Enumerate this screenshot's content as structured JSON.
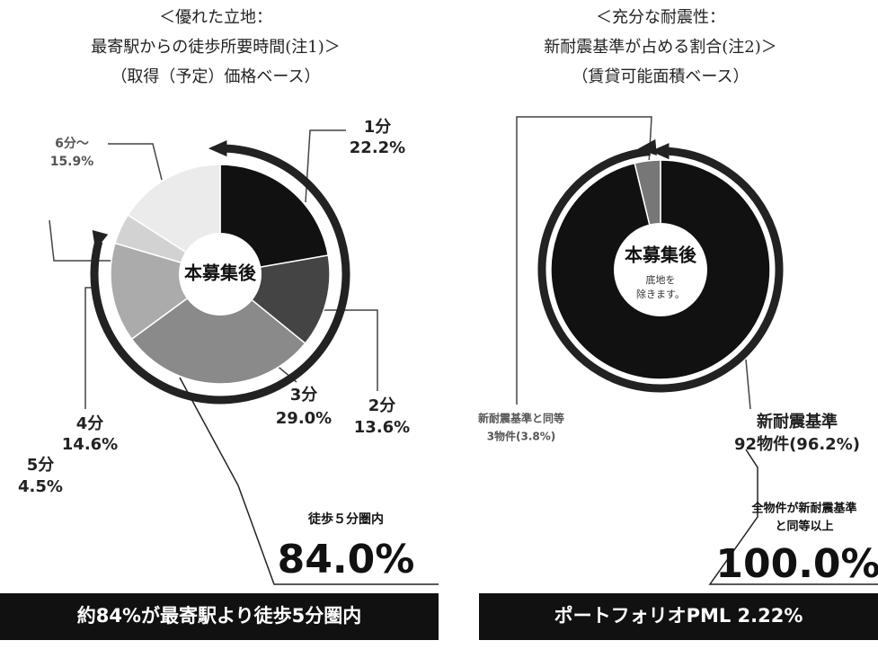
{
  "chart_data": [
    {
      "type": "pie",
      "title": [
        "＜優れた立地：",
        "最寄駅からの徒歩所要時間(注1)＞",
        "（取得（予定）価格ベース）"
      ],
      "center_label": "本募集後",
      "categories": [
        "1分",
        "2分",
        "3分",
        "4分",
        "5分",
        "6分～"
      ],
      "values": [
        22.2,
        13.6,
        29.0,
        14.6,
        4.5,
        15.9
      ],
      "value_labels": [
        "22.2%",
        "13.6%",
        "29.0%",
        "14.6%",
        "4.5%",
        "15.9%"
      ],
      "colors": [
        "#111111",
        "#444444",
        "#8a8a8a",
        "#ababab",
        "#d2d2d2",
        "#ebebeb"
      ],
      "annotations": [
        "徒歩５分圏内",
        "84.0%"
      ],
      "banner": "約84%が最寄駅より徒歩5分圏内"
    },
    {
      "type": "pie",
      "title": [
        "＜充分な耐震性：",
        "新耐震基準が占める割合(注2)＞",
        "（賃貸可能面積ベース）"
      ],
      "center_label": "本募集後",
      "center_note": [
        "底地を",
        "除きます。"
      ],
      "categories": [
        "新耐震基準",
        "新耐震基準と同等"
      ],
      "values": [
        96.2,
        3.8
      ],
      "value_labels": [
        "92物件(96.2%)",
        "3物件(3.8%)"
      ],
      "colors": [
        "#111111",
        "#777777"
      ],
      "annotations": [
        "全物件が新耐震基準",
        "と同等以上",
        "100.0%"
      ],
      "banner": "ポートフォリオPML 2.22%"
    }
  ]
}
